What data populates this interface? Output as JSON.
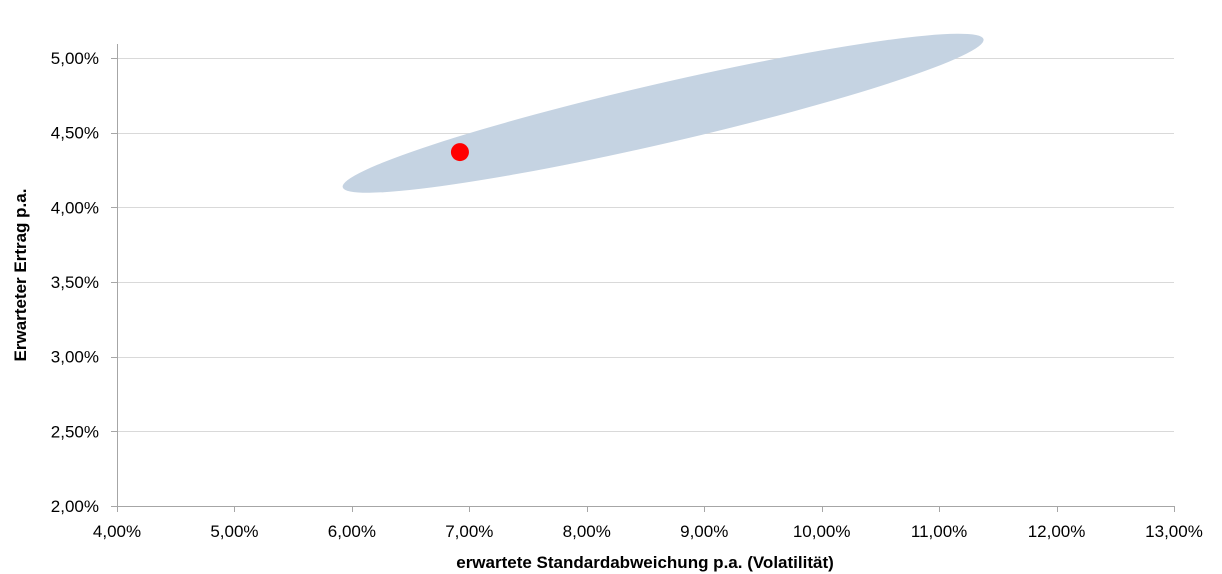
{
  "chart_data": {
    "type": "scatter",
    "title": "",
    "xlabel": "erwartete Standardabweichung p.a. (Volatilität)",
    "ylabel": "Erwarteter Ertrag p.a.",
    "xlim": [
      4.0,
      13.0
    ],
    "ylim": [
      2.0,
      5.0
    ],
    "x_ticks": [
      4.0,
      5.0,
      6.0,
      7.0,
      8.0,
      9.0,
      10.0,
      11.0,
      12.0,
      13.0
    ],
    "x_tick_labels": [
      "4,00%",
      "5,00%",
      "6,00%",
      "7,00%",
      "8,00%",
      "9,00%",
      "10,00%",
      "11,00%",
      "12,00%",
      "13,00%"
    ],
    "y_ticks": [
      2.0,
      2.5,
      3.0,
      3.5,
      4.0,
      4.5,
      5.0
    ],
    "y_tick_labels": [
      "2,00%",
      "2,50%",
      "3,00%",
      "3,50%",
      "4,00%",
      "4,50%",
      "5,00%"
    ],
    "grid": "horizontal",
    "region": {
      "shape": "ellipse",
      "color": "#c5d3e2",
      "center": {
        "x": 8.65,
        "y": 4.63
      },
      "semi_axis_x": 2.8,
      "semi_axis_y": 0.2,
      "rotation_deg": -13
    },
    "points": [
      {
        "x": 6.92,
        "y": 4.37,
        "color": "#ff0000"
      }
    ]
  }
}
